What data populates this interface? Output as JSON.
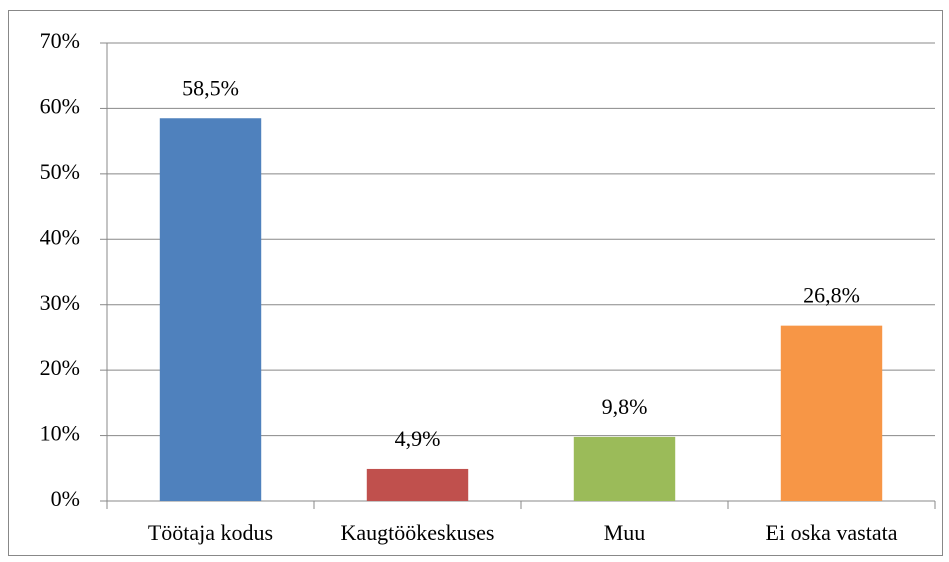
{
  "chart_data": {
    "type": "bar",
    "categories": [
      "Töötaja kodus",
      "Kaugtöökeskuses",
      "Muu",
      "Ei oska vastata"
    ],
    "values": [
      58.5,
      4.9,
      9.8,
      26.8
    ],
    "value_labels": [
      "58,5%",
      "4,9%",
      "9,8%",
      "26,8%"
    ],
    "colors": [
      "#4f81bd",
      "#c0504d",
      "#9bbb59",
      "#f79646"
    ],
    "ylim": [
      0,
      70
    ],
    "yticks": [
      {
        "value": 0,
        "label": "0%"
      },
      {
        "value": 10,
        "label": "10%"
      },
      {
        "value": 20,
        "label": "20%"
      },
      {
        "value": 30,
        "label": "30%"
      },
      {
        "value": 40,
        "label": "40%"
      },
      {
        "value": 50,
        "label": "50%"
      },
      {
        "value": 60,
        "label": "60%"
      },
      {
        "value": 70,
        "label": "70%"
      }
    ],
    "grid": true
  }
}
